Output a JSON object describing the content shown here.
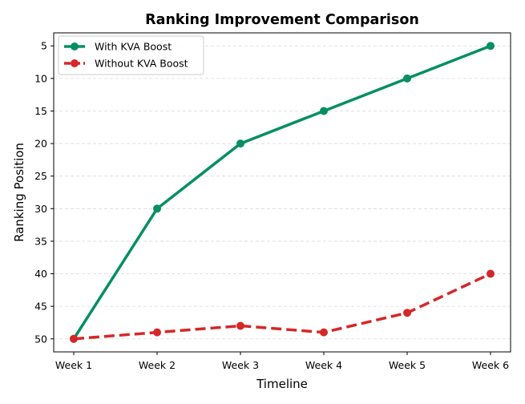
{
  "chart_data": {
    "type": "line",
    "title": "Ranking Improvement Comparison",
    "xlabel": "Timeline",
    "ylabel": "Ranking Position",
    "categories": [
      "Week 1",
      "Week 2",
      "Week 3",
      "Week 4",
      "Week 5",
      "Week 6"
    ],
    "y_ticks": [
      5,
      10,
      15,
      20,
      25,
      30,
      35,
      40,
      45,
      50
    ],
    "ylim": [
      52,
      3
    ],
    "y_inverted": true,
    "grid": "horizontal dashed",
    "legend_position": "top-left",
    "series": [
      {
        "name": "With KVA Boost",
        "values": [
          50,
          30,
          20,
          15,
          10,
          5
        ],
        "color": "#068f62",
        "style": "solid"
      },
      {
        "name": "Without KVA Boost",
        "values": [
          50,
          49,
          48,
          49,
          46,
          40
        ],
        "color": "#d62728",
        "style": "dashed"
      }
    ]
  }
}
